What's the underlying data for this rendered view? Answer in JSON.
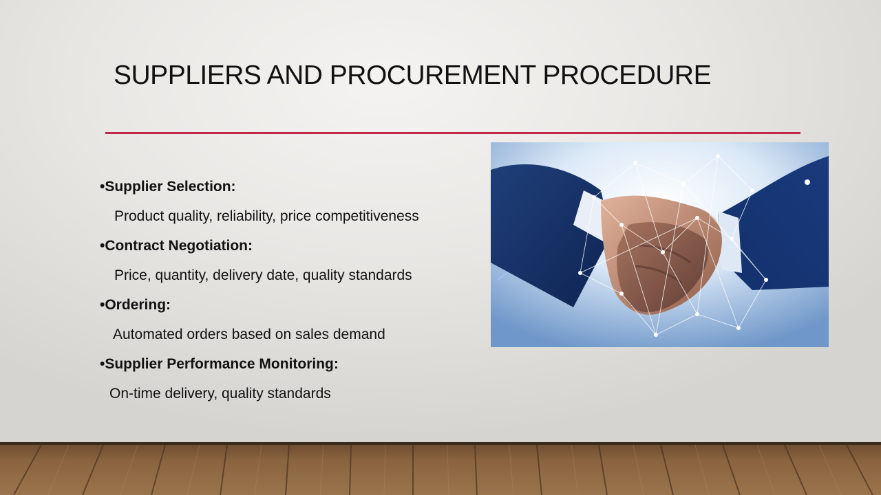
{
  "slide": {
    "title": "SUPPLIERS AND PROCUREMENT PROCEDURE",
    "accent_color": "#c0284a",
    "bullets": [
      {
        "heading": "•Supplier Selection:",
        "detail": "Product quality, reliability, price competitiveness"
      },
      {
        "heading": "•Contract Negotiation:",
        "detail": "Price, quantity, delivery date, quality standards"
      },
      {
        "heading": "•Ordering:",
        "detail": "Automated orders based on sales demand"
      },
      {
        "heading": "•Supplier Performance Monitoring:",
        "detail": "On-time delivery, quality standards"
      }
    ],
    "image": {
      "subject": "handshake-network-photo"
    },
    "background": {
      "floor": "wood-floor"
    }
  }
}
